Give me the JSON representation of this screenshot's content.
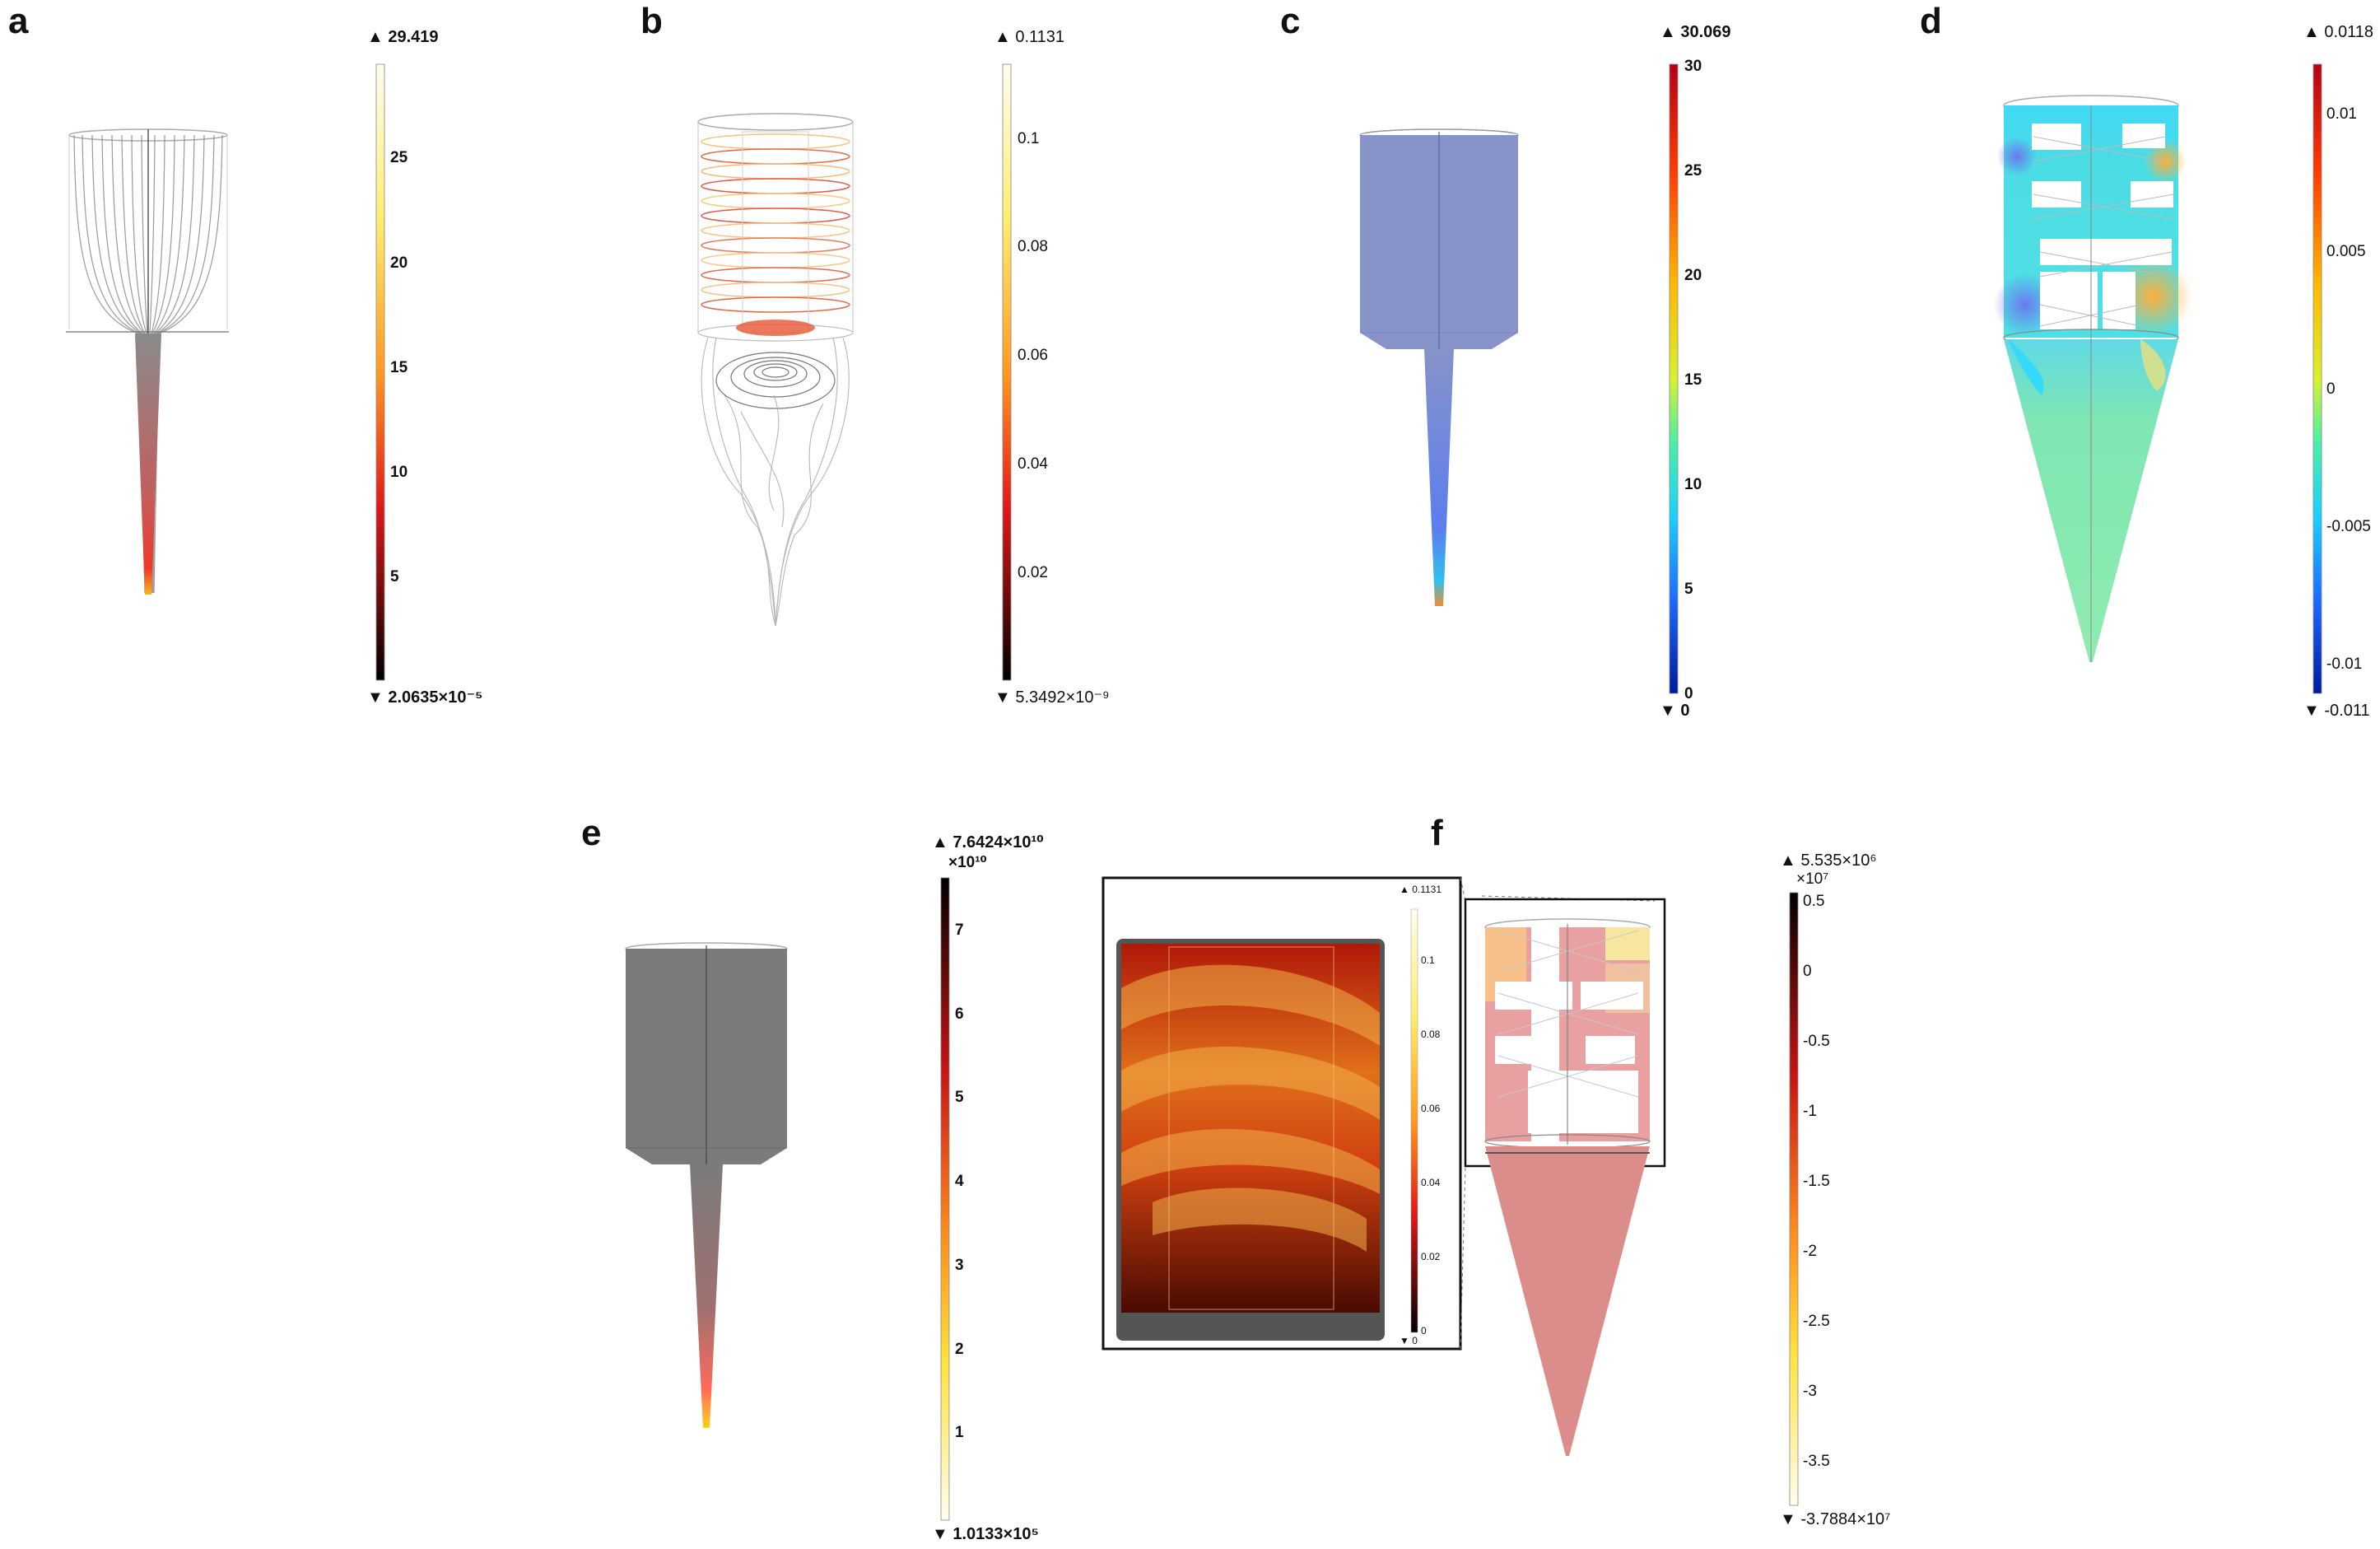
{
  "figure": {
    "panels": [
      {
        "id": "a",
        "letter": "a",
        "description_free": true,
        "colorbar": {
          "max_label": "29.419",
          "min_label": "2.0635×10⁻⁵",
          "ticks": [
            "25",
            "20",
            "15",
            "10",
            "5"
          ],
          "tick_values": [
            25,
            20,
            15,
            10,
            5
          ],
          "range": [
            0,
            29.419
          ],
          "colormap": "heat"
        }
      },
      {
        "id": "b",
        "letter": "b",
        "colorbar": {
          "max_label": "0.1131",
          "min_label": "5.3492×10⁻⁹",
          "ticks": [
            "0.1",
            "0.08",
            "0.06",
            "0.04",
            "0.02"
          ],
          "tick_values": [
            0.1,
            0.08,
            0.06,
            0.04,
            0.02
          ],
          "range": [
            0,
            0.1131
          ],
          "colormap": "heat"
        }
      },
      {
        "id": "c",
        "letter": "c",
        "colorbar": {
          "max_label": "30.069",
          "min_label": "0",
          "ticks": [
            "30",
            "25",
            "20",
            "15",
            "10",
            "5",
            "0"
          ],
          "tick_values": [
            30,
            25,
            20,
            15,
            10,
            5,
            0
          ],
          "range": [
            0,
            30.069
          ],
          "colormap": "jet"
        }
      },
      {
        "id": "d",
        "letter": "d",
        "colorbar": {
          "max_label": "0.0118",
          "min_label": "-0.011",
          "ticks": [
            "0.01",
            "0.005",
            "0",
            "-0.005",
            "-0.01"
          ],
          "tick_values": [
            0.01,
            0.005,
            0,
            -0.005,
            -0.01
          ],
          "range": [
            -0.011,
            0.0118
          ],
          "colormap": "jet"
        }
      },
      {
        "id": "e",
        "letter": "e",
        "colorbar": {
          "max_label": "7.6424×10¹⁰",
          "multiplier": "×10¹⁰",
          "min_label": "1.0133×10⁵",
          "ticks": [
            "7",
            "6",
            "5",
            "4",
            "3",
            "2",
            "1"
          ],
          "tick_values": [
            7,
            6,
            5,
            4,
            3,
            2,
            1
          ],
          "range": [
            0,
            7.6424
          ],
          "colormap": "heat"
        }
      },
      {
        "id": "f",
        "letter": "f",
        "colorbar": {
          "max_label": "5.535×10⁶",
          "multiplier": "×10⁷",
          "min_label": "-3.7884×10⁷",
          "ticks": [
            "0.5",
            "0",
            "-0.5",
            "-1",
            "-1.5",
            "-2",
            "-2.5",
            "-3",
            "-3.5"
          ],
          "tick_values": [
            0.5,
            0,
            -0.5,
            -1,
            -1.5,
            -2,
            -2.5,
            -3,
            -3.5
          ],
          "range": [
            -3.7884,
            0.5535
          ],
          "colormap": "heat"
        },
        "inset_colorbar": {
          "max_label": "0.1131",
          "min_label": "0",
          "ticks": [
            "0.1",
            "0.08",
            "0.06",
            "0.04",
            "0.02",
            "0"
          ],
          "tick_values": [
            0.1,
            0.08,
            0.06,
            0.04,
            0.02,
            0
          ],
          "range": [
            0,
            0.1131
          ],
          "colormap": "heat"
        }
      }
    ],
    "colors": {
      "heat_top": "#fffbe6",
      "heat_mid1": "#ffe23a",
      "heat_mid2": "#ff8a1c",
      "heat_mid3": "#e01818",
      "heat_bottom": "#000000",
      "jet_top": "#b50018",
      "jet_bottom": "#00199e",
      "geometry_blue": "#8793c9",
      "geometry_gray": "#7b7b7b",
      "pressure_pink": "#dd8c8c",
      "shear_green": "#7fe6b2"
    }
  }
}
